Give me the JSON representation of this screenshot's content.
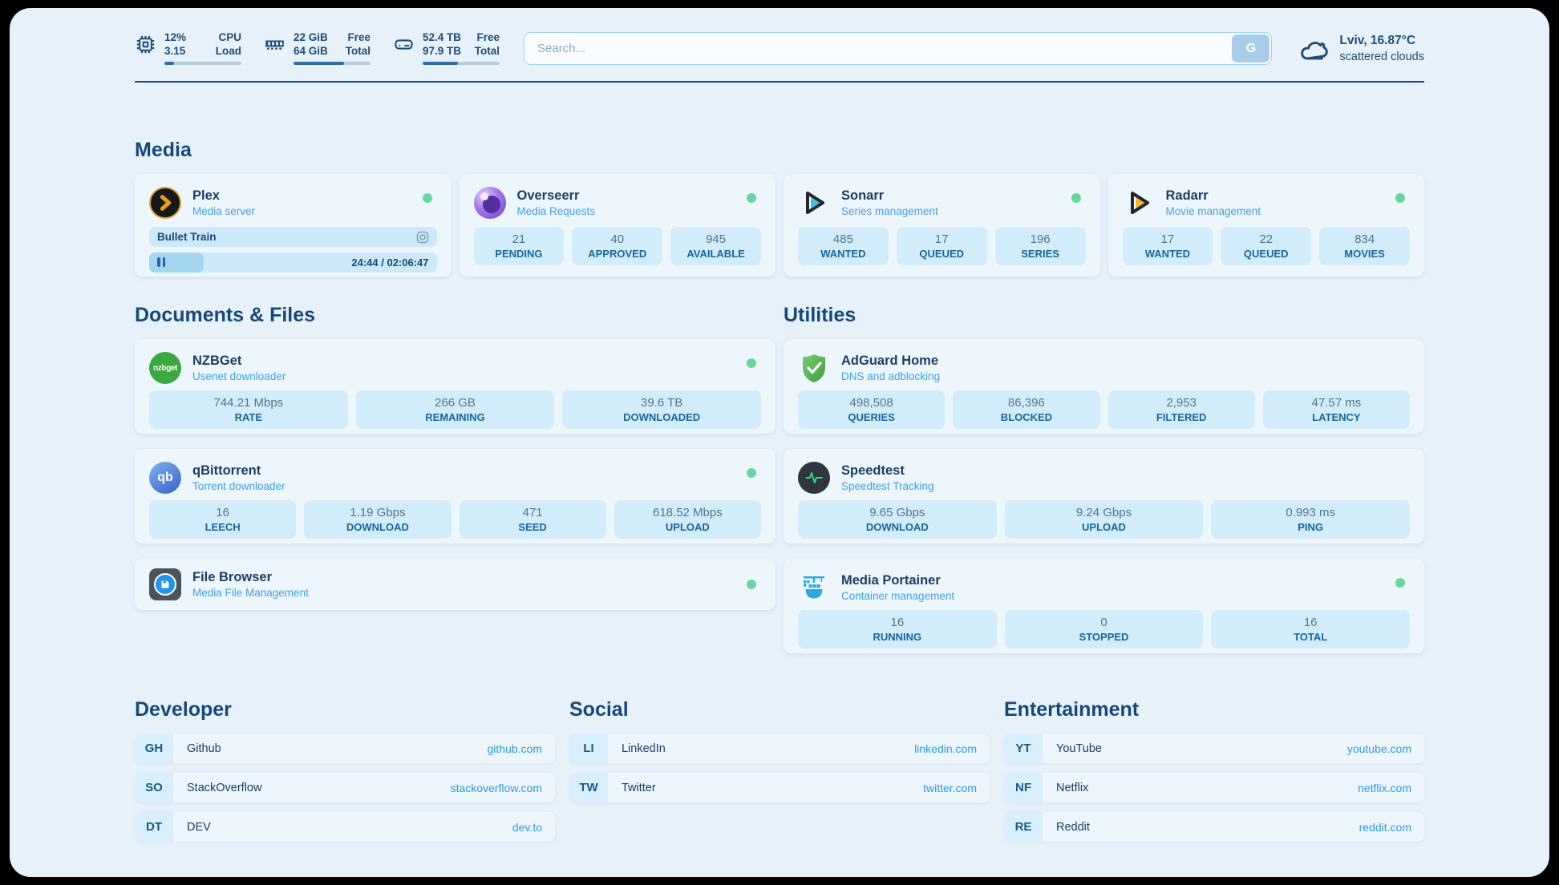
{
  "header": {
    "stats": [
      {
        "icon": "cpu-icon",
        "value_top": "12%",
        "value_bottom": "3.15",
        "label_top": "CPU",
        "label_bottom": "Load",
        "progress": 12
      },
      {
        "icon": "memory-icon",
        "value_top": "22 GiB",
        "value_bottom": "64 GiB",
        "label_top": "Free",
        "label_bottom": "Total",
        "progress": 66
      },
      {
        "icon": "disk-icon",
        "value_top": "52.4 TB",
        "value_bottom": "97.9 TB",
        "label_top": "Free",
        "label_bottom": "Total",
        "progress": 46
      }
    ],
    "search": {
      "placeholder": "Search...",
      "button_label": "G"
    },
    "weather": {
      "icon": "cloud-icon",
      "location": "Lviv, 16.87°C",
      "condition": "scattered clouds"
    }
  },
  "media": {
    "heading": "Media",
    "plex": {
      "icon": "plex-icon",
      "title": "Plex",
      "subtitle": "Media server",
      "now_playing": {
        "title": "Bullet Train",
        "time": "24:44 / 02:06:47",
        "progress": 19
      }
    },
    "overseerr": {
      "icon": "overseerr-icon",
      "title": "Overseerr",
      "subtitle": "Media Requests",
      "stats": [
        {
          "value": "21",
          "label": "PENDING"
        },
        {
          "value": "40",
          "label": "APPROVED"
        },
        {
          "value": "945",
          "label": "AVAILABLE"
        }
      ]
    },
    "sonarr": {
      "icon": "sonarr-icon",
      "title": "Sonarr",
      "subtitle": "Series management",
      "stats": [
        {
          "value": "485",
          "label": "WANTED"
        },
        {
          "value": "17",
          "label": "QUEUED"
        },
        {
          "value": "196",
          "label": "SERIES"
        }
      ]
    },
    "radarr": {
      "icon": "radarr-icon",
      "title": "Radarr",
      "subtitle": "Movie management",
      "stats": [
        {
          "value": "17",
          "label": "WANTED"
        },
        {
          "value": "22",
          "label": "QUEUED"
        },
        {
          "value": "834",
          "label": "MOVIES"
        }
      ]
    }
  },
  "documents": {
    "heading": "Documents & Files",
    "nzbget": {
      "icon": "nzbget-icon",
      "icon_text": "nzbget",
      "title": "NZBGet",
      "subtitle": "Usenet downloader",
      "stats": [
        {
          "value": "744.21 Mbps",
          "label": "RATE"
        },
        {
          "value": "266 GB",
          "label": "REMAINING"
        },
        {
          "value": "39.6 TB",
          "label": "DOWNLOADED"
        }
      ]
    },
    "qbittorrent": {
      "icon": "qbittorrent-icon",
      "icon_text": "qb",
      "title": "qBittorrent",
      "subtitle": "Torrent downloader",
      "stats": [
        {
          "value": "16",
          "label": "LEECH"
        },
        {
          "value": "1.19 Gbps",
          "label": "DOWNLOAD"
        },
        {
          "value": "471",
          "label": "SEED"
        },
        {
          "value": "618.52 Mbps",
          "label": "UPLOAD"
        }
      ]
    },
    "filebrowser": {
      "icon": "filebrowser-icon",
      "title": "File Browser",
      "subtitle": "Media File Management"
    }
  },
  "utilities": {
    "heading": "Utilities",
    "adguard": {
      "icon": "adguard-icon",
      "title": "AdGuard Home",
      "subtitle": "DNS and adblocking",
      "stats": [
        {
          "value": "498,508",
          "label": "QUERIES"
        },
        {
          "value": "86,396",
          "label": "BLOCKED"
        },
        {
          "value": "2,953",
          "label": "FILTERED"
        },
        {
          "value": "47.57 ms",
          "label": "LATENCY"
        }
      ]
    },
    "speedtest": {
      "icon": "speedtest-icon",
      "title": "Speedtest",
      "subtitle": "Speedtest Tracking",
      "stats": [
        {
          "value": "9.65 Gbps",
          "label": "DOWNLOAD"
        },
        {
          "value": "9.24 Gbps",
          "label": "UPLOAD"
        },
        {
          "value": "0.993 ms",
          "label": "PING"
        }
      ]
    },
    "portainer": {
      "icon": "portainer-icon",
      "title": "Media Portainer",
      "subtitle": "Container management",
      "stats": [
        {
          "value": "16",
          "label": "RUNNING"
        },
        {
          "value": "0",
          "label": "STOPPED"
        },
        {
          "value": "16",
          "label": "TOTAL"
        }
      ]
    }
  },
  "bookmarks": {
    "developer": {
      "heading": "Developer",
      "items": [
        {
          "abbr": "GH",
          "name": "Github",
          "url": "github.com"
        },
        {
          "abbr": "SO",
          "name": "StackOverflow",
          "url": "stackoverflow.com"
        },
        {
          "abbr": "DT",
          "name": "DEV",
          "url": "dev.to"
        }
      ]
    },
    "social": {
      "heading": "Social",
      "items": [
        {
          "abbr": "LI",
          "name": "LinkedIn",
          "url": "linkedin.com"
        },
        {
          "abbr": "TW",
          "name": "Twitter",
          "url": "twitter.com"
        }
      ]
    },
    "entertainment": {
      "heading": "Entertainment",
      "items": [
        {
          "abbr": "YT",
          "name": "YouTube",
          "url": "youtube.com"
        },
        {
          "abbr": "NF",
          "name": "Netflix",
          "url": "netflix.com"
        },
        {
          "abbr": "RE",
          "name": "Reddit",
          "url": "reddit.com"
        }
      ]
    }
  },
  "colors": {
    "page_bg": "#e7f1fa",
    "card_bg": "#edf6fd",
    "stat_box_bg": "#d3ecfa",
    "heading_text": "#16497a",
    "subtitle_text": "#41a0e8",
    "stat_label": "#1566a0",
    "stat_value": "#54748c",
    "url_text": "#2b9be8",
    "status_ok": "#67d79b",
    "progress_fill": "#2e6da4",
    "plex_orange": "#e5a00d",
    "sonarr_cyan": "#38c1ef",
    "radarr_amber": "#f7b52b",
    "nzbget_green": "#3aa93f",
    "qbittorrent_blue": "#4a7fd6",
    "adguard_green": "#57b857",
    "portainer_blue": "#29a8e0",
    "speedtest_pulse": "#35d07f"
  }
}
